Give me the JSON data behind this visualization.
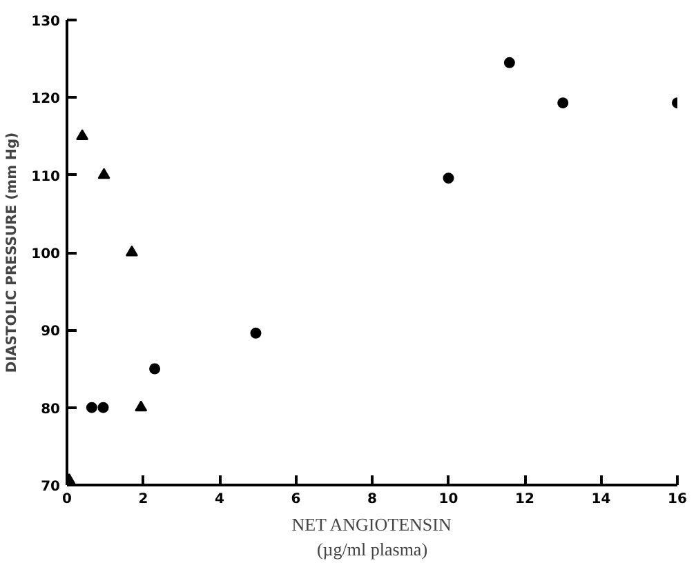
{
  "chart_data": {
    "type": "scatter",
    "xlabel": "NET ANGIOTENSIN\n(µg/ml plasma)",
    "ylabel": "DIASTOLIC PRESSURE (mm Hg)",
    "xlim": [
      0,
      16
    ],
    "xticks": [
      0,
      2,
      4,
      6,
      8,
      10,
      12,
      14,
      16
    ],
    "ylim": [
      70,
      130
    ],
    "yticks": [
      70,
      80,
      90,
      100,
      110,
      120,
      130
    ],
    "grid": false,
    "series": [
      {
        "color": "#000000",
        "marker": "circle",
        "x": [
          0.65,
          0.95,
          2.3,
          4.95,
          10.0,
          11.6,
          13.0,
          16.0
        ],
        "values": [
          80,
          80,
          85,
          89.6,
          109.6,
          124.5,
          119.3,
          119.3
        ]
      },
      {
        "color": "#000000",
        "marker": "triangle",
        "x": [
          0.06,
          0.4,
          0.97,
          1.7,
          1.94
        ],
        "values": [
          70.6,
          115,
          110,
          100,
          80
        ]
      }
    ]
  }
}
